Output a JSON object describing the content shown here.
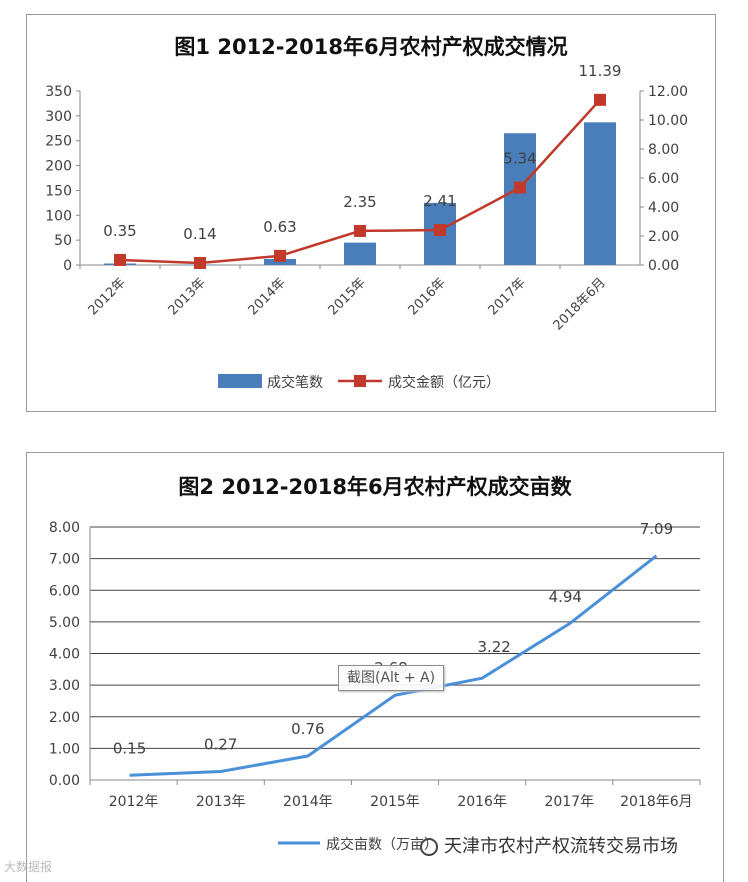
{
  "chart_data": [
    {
      "type": "bar+line",
      "title": "图1 2012-2018年6月农村产权成交情况",
      "categories": [
        "2012年",
        "2013年",
        "2014年",
        "2015年",
        "2016年",
        "2017年",
        "2018年6月"
      ],
      "y_left": {
        "ylim": [
          0,
          350
        ],
        "ticks": [
          "0",
          "50",
          "100",
          "150",
          "200",
          "250",
          "300",
          "350"
        ]
      },
      "y_right": {
        "ylim": [
          0,
          12
        ],
        "ticks": [
          "0.00",
          "2.00",
          "4.00",
          "6.00",
          "8.00",
          "10.00",
          "12.00"
        ]
      },
      "series": [
        {
          "name": "成交笔数",
          "type": "bar",
          "axis": "left",
          "color": "#4a7ebb",
          "values": [
            3,
            1,
            12,
            45,
            125,
            265,
            287
          ]
        },
        {
          "name": "成交金额（亿元）",
          "type": "line",
          "axis": "right",
          "color": "#c0392b",
          "values": [
            0.35,
            0.14,
            0.63,
            2.35,
            2.41,
            5.34,
            11.39
          ],
          "labels": [
            "0.35",
            "0.14",
            "0.63",
            "2.35",
            "2.41",
            "5.34",
            "11.39"
          ]
        }
      ],
      "grid": false,
      "legend": "bottom"
    },
    {
      "type": "line",
      "title": "图2 2012-2018年6月农村产权成交亩数",
      "categories": [
        "2012年",
        "2013年",
        "2014年",
        "2015年",
        "2016年",
        "2017年",
        "2018年6月"
      ],
      "ylim": [
        0,
        8
      ],
      "ticks": [
        "0.00",
        "1.00",
        "2.00",
        "3.00",
        "4.00",
        "5.00",
        "6.00",
        "7.00",
        "8.00"
      ],
      "series": [
        {
          "name": "成交亩数（万亩）",
          "color": "#4a90d9",
          "values": [
            0.15,
            0.27,
            0.76,
            2.68,
            3.22,
            4.94,
            7.09
          ],
          "labels": [
            "0.15",
            "0.27",
            "0.76",
            "2.68",
            "3.22",
            "4.94",
            "7.09"
          ]
        }
      ],
      "grid": true,
      "legend": "bottom"
    }
  ],
  "overlay": {
    "tooltip": "截图(Alt + A)",
    "watermark_right": "天津市农村产权流转交易市场",
    "watermark_left": "大数据报"
  }
}
